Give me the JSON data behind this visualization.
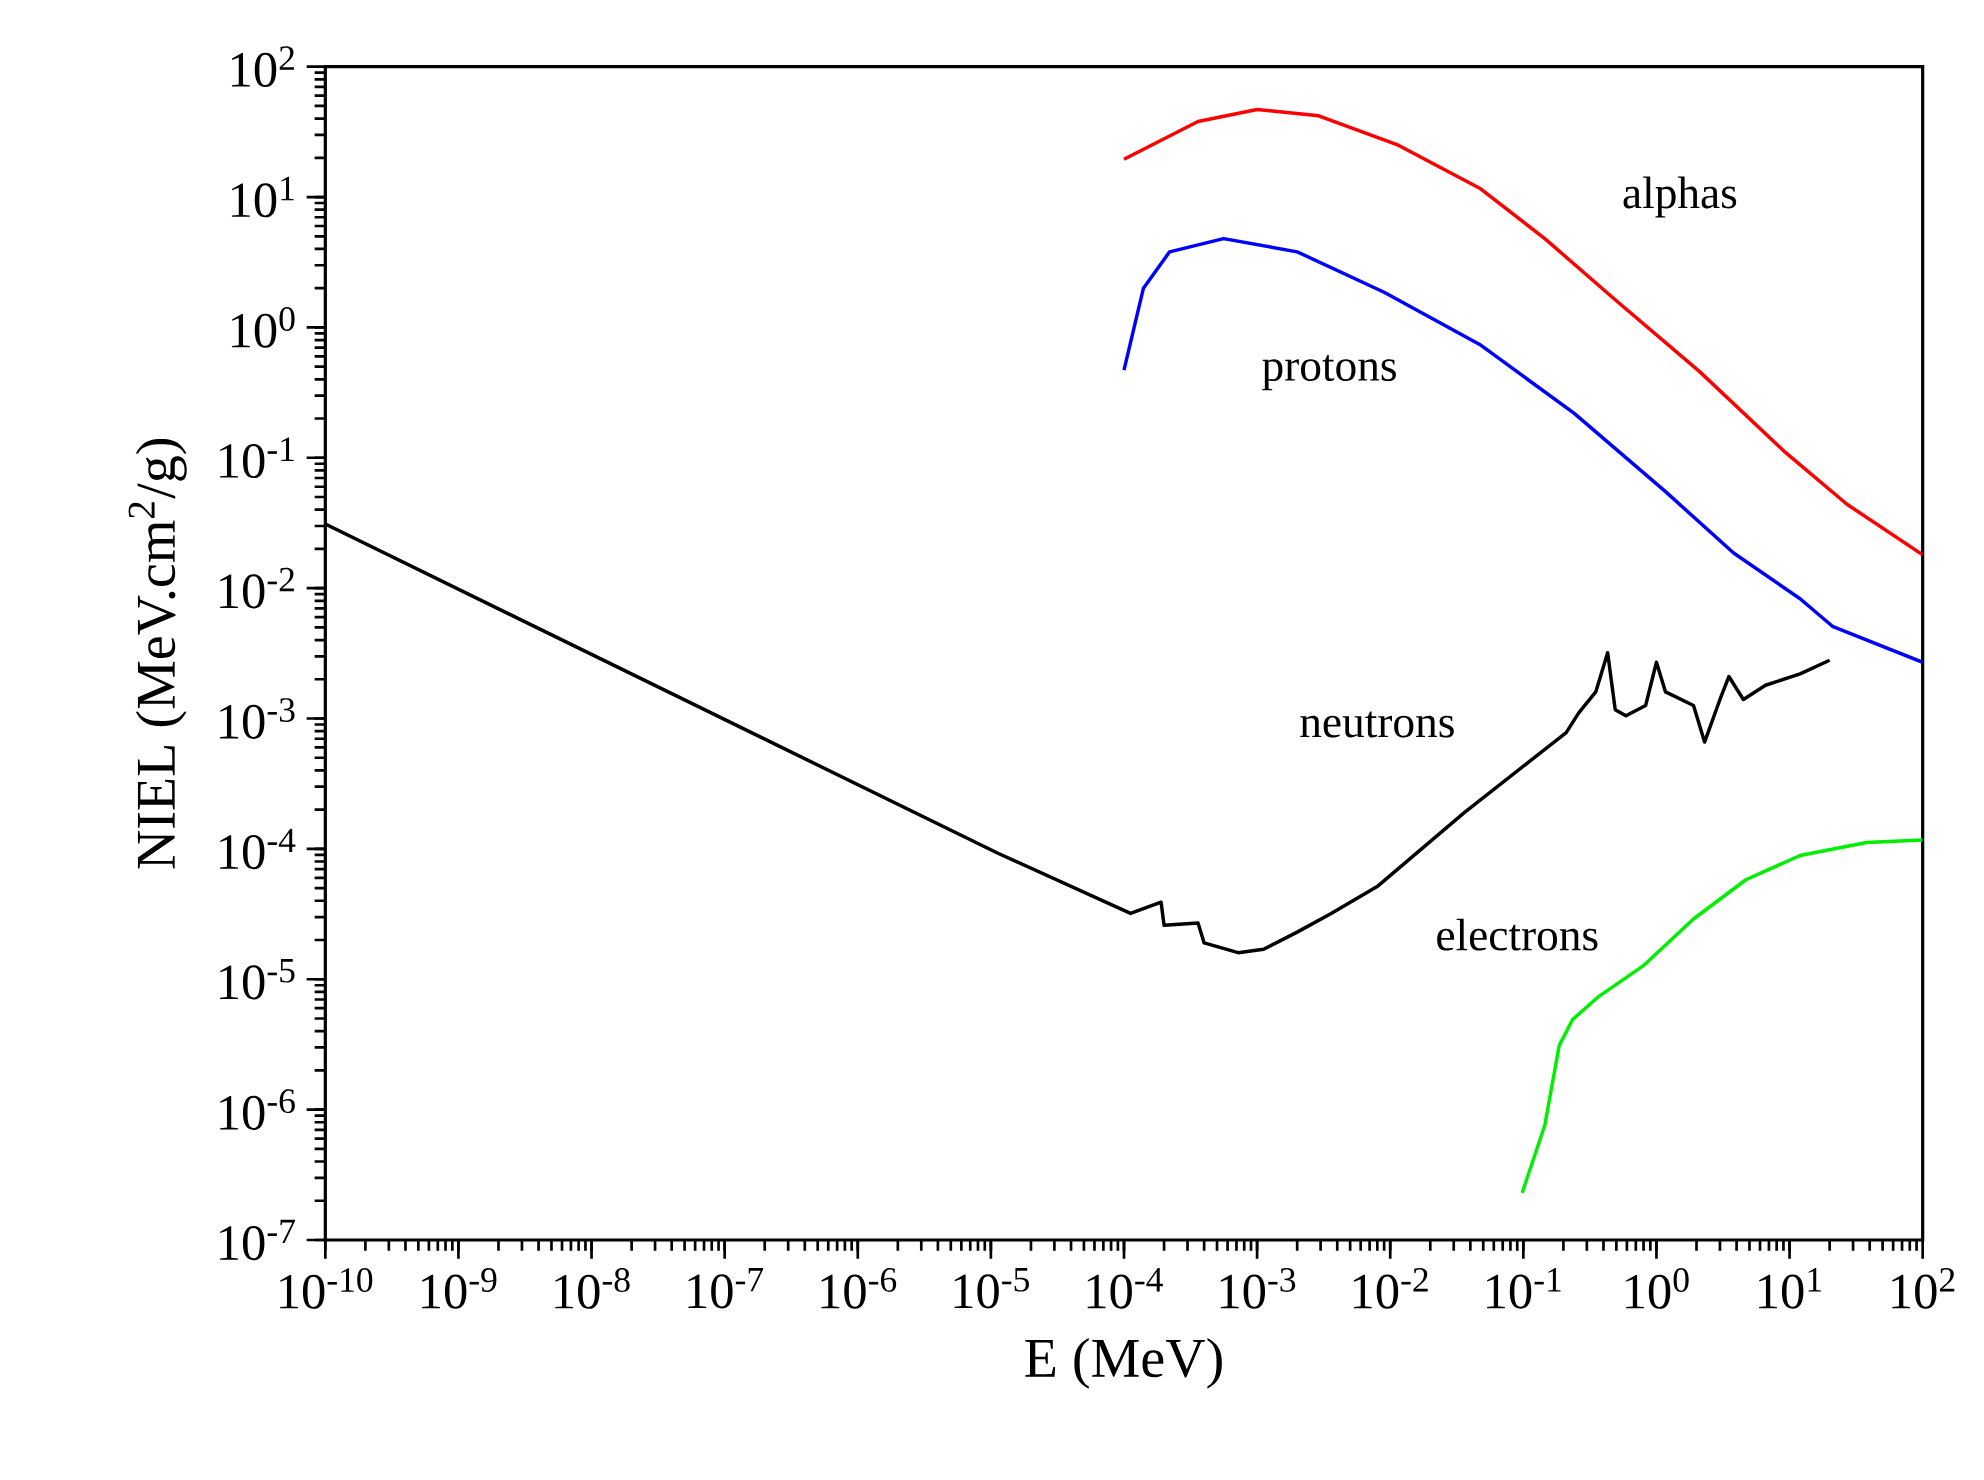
{
  "chart_data": {
    "type": "line",
    "xlabel": "E (MeV)",
    "ylabel": "NIEL (MeV.cm$^{2}$/g)",
    "log": "xy",
    "legend": false,
    "xlim": [
      1e-10,
      100
    ],
    "ylim": [
      1e-07,
      100
    ],
    "xticks": [
      {
        "value": 1e-10,
        "label": "10$^{-10}$"
      },
      {
        "value": 1e-09,
        "label": "10$^{-9}$"
      },
      {
        "value": 1e-08,
        "label": "10$^{-8}$"
      },
      {
        "value": 1e-07,
        "label": "10$^{-7}$"
      },
      {
        "value": 1e-06,
        "label": "10$^{-6}$"
      },
      {
        "value": 1e-05,
        "label": "10$^{-5}$"
      },
      {
        "value": 0.0001,
        "label": "10$^{-4}$"
      },
      {
        "value": 0.001,
        "label": "10$^{-3}$"
      },
      {
        "value": 0.01,
        "label": "10$^{-2}$"
      },
      {
        "value": 0.1,
        "label": "10$^{-1}$"
      },
      {
        "value": 1,
        "label": "10$^{0}$"
      },
      {
        "value": 10,
        "label": "10$^{1}$"
      },
      {
        "value": 100,
        "label": "10$^{2}$"
      }
    ],
    "yticks": [
      {
        "value": 1e-07,
        "label": "10$^{-7}$"
      },
      {
        "value": 1e-06,
        "label": "10$^{-6}$"
      },
      {
        "value": 1e-05,
        "label": "10$^{-5}$"
      },
      {
        "value": 0.0001,
        "label": "10$^{-4}$"
      },
      {
        "value": 0.001,
        "label": "10$^{-3}$"
      },
      {
        "value": 0.01,
        "label": "10$^{-2}$"
      },
      {
        "value": 0.1,
        "label": "10$^{-1}$"
      },
      {
        "value": 1,
        "label": "10$^{0}$"
      },
      {
        "value": 10,
        "label": "10$^{1}$"
      },
      {
        "value": 100,
        "label": "10$^{2}$"
      }
    ],
    "series": [
      {
        "name": "alphas",
        "color": "#ff0000",
        "x": [
          0.0001,
          0.00036,
          0.001,
          0.0029,
          0.0115,
          0.047,
          0.145,
          0.48,
          2.1,
          9.3,
          27,
          100
        ],
        "values": [
          19.5,
          38,
          47,
          42,
          25,
          11.7,
          4.8,
          1.66,
          0.46,
          0.11,
          0.044,
          0.018
        ]
      },
      {
        "name": "protons",
        "color": "#0000ff",
        "x": [
          0.0001,
          0.00014,
          0.00022,
          0.00056,
          0.002,
          0.009,
          0.047,
          0.24,
          1.17,
          3.8,
          12,
          21,
          100
        ],
        "values": [
          0.47,
          2.0,
          3.8,
          4.8,
          3.8,
          1.86,
          0.74,
          0.22,
          0.055,
          0.0186,
          0.0083,
          0.0051,
          0.0027
        ]
      },
      {
        "name": "neutrons",
        "color": "#000000",
        "x": [
          1e-10,
          1.12e-05,
          0.000112,
          0.00019,
          0.0002,
          0.00036,
          0.0004,
          0.00072,
          0.00112,
          0.002,
          0.0036,
          0.0081,
          0.036,
          0.21,
          0.26,
          0.35,
          0.43,
          0.49,
          0.59,
          0.83,
          1.0,
          1.17,
          1.9,
          2.3,
          3.0,
          3.5,
          4.5,
          6.6,
          12,
          20
        ],
        "values": [
          0.031,
          9.3e-05,
          3.2e-05,
          3.9e-05,
          2.6e-05,
          2.7e-05,
          1.9e-05,
          1.6e-05,
          1.7e-05,
          2.3e-05,
          3.2e-05,
          5.2e-05,
          0.00019,
          0.00078,
          0.0011,
          0.0016,
          0.0032,
          0.00117,
          0.00105,
          0.00126,
          0.0027,
          0.0016,
          0.00126,
          0.00066,
          0.0014,
          0.0021,
          0.0014,
          0.0018,
          0.0022,
          0.0028
        ]
      },
      {
        "name": "electrons",
        "color": "#00ee00",
        "x": [
          0.098,
          0.145,
          0.186,
          0.234,
          0.37,
          0.79,
          1.9,
          4.7,
          12,
          38,
          100
        ],
        "values": [
          2.3e-07,
          7.6e-07,
          3.1e-06,
          4.9e-06,
          7.4e-06,
          1.26e-05,
          2.9e-05,
          5.8e-05,
          8.9e-05,
          0.000112,
          0.000117
        ]
      }
    ]
  }
}
